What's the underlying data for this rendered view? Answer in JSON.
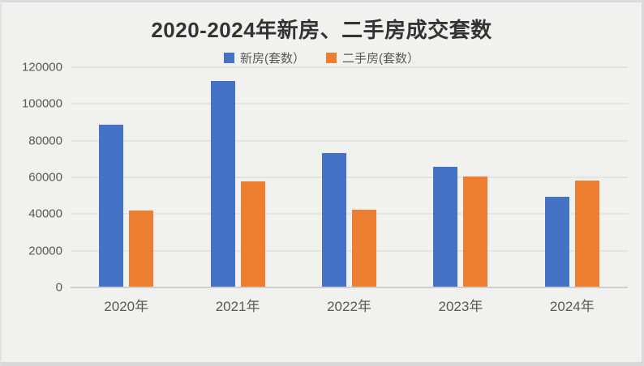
{
  "window": {
    "background_color": "#f1f1f0",
    "border_color": "#dcdcdc"
  },
  "chart_data": {
    "type": "bar",
    "title": "2020-2024年新房、二手房成交套数",
    "categories": [
      "2020年",
      "2021年",
      "2022年",
      "2023年",
      "2024年"
    ],
    "series": [
      {
        "name": "新房(套数）",
        "color": "#4472C4",
        "values": [
          88800,
          112700,
          73400,
          65800,
          49300
        ]
      },
      {
        "name": "二手房(套数）",
        "color": "#ED7D31",
        "values": [
          41800,
          58000,
          42300,
          60400,
          58200
        ]
      }
    ],
    "ylabel": "",
    "xlabel": "",
    "ylim": [
      0,
      120000
    ],
    "ytick_step": 20000,
    "ytick_labels": [
      "0",
      "20000",
      "40000",
      "60000",
      "80000",
      "100000",
      "120000"
    ],
    "grid": true,
    "legend_position": "top",
    "text_color": "#595959",
    "title_color": "#333333"
  }
}
